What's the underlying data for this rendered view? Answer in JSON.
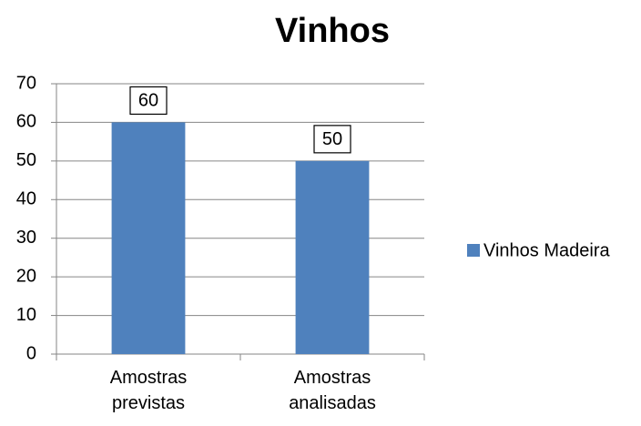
{
  "chart_data": {
    "type": "bar",
    "title": "Vinhos",
    "categories": [
      "Amostras previstas",
      "Amostras analisadas"
    ],
    "series": [
      {
        "name": "Vinhos Madeira",
        "color": "#4f81bd",
        "values": [
          60,
          50
        ]
      }
    ],
    "ylim": [
      0,
      70
    ],
    "yticks": [
      0,
      10,
      20,
      30,
      40,
      50,
      60,
      70
    ],
    "grid": true,
    "legend": "right"
  }
}
